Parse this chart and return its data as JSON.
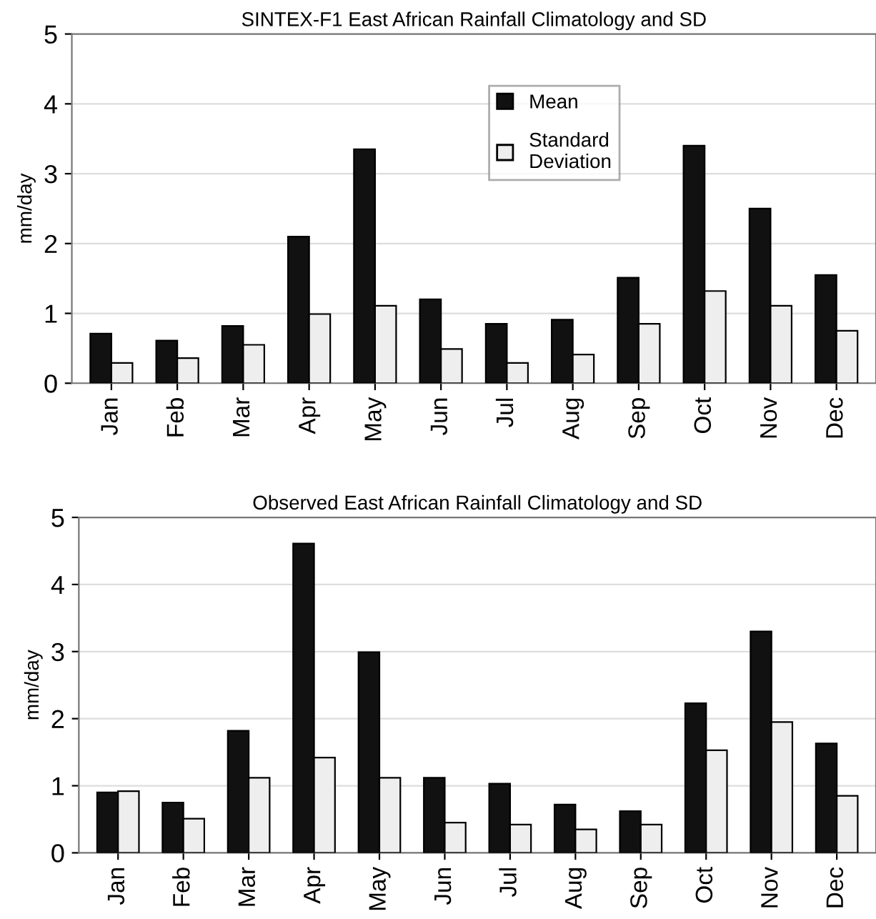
{
  "chart_data": [
    {
      "type": "bar",
      "title": "SINTEX-F1 East African Rainfall Climatology and SD",
      "ylabel": "mm/day",
      "categories": [
        "Jan",
        "Feb",
        "Mar",
        "Apr",
        "May",
        "Jun",
        "Jul",
        "Aug",
        "Sep",
        "Oct",
        "Nov",
        "Dec"
      ],
      "series": [
        {
          "name": "Mean",
          "color": "#111111",
          "values": [
            0.71,
            0.61,
            0.82,
            2.1,
            3.35,
            1.2,
            0.85,
            0.91,
            1.51,
            3.4,
            2.5,
            1.55
          ]
        },
        {
          "name": "Standard\nDeviation",
          "color": "#eeeeee",
          "values": [
            0.29,
            0.36,
            0.55,
            0.99,
            1.11,
            0.49,
            0.29,
            0.41,
            0.85,
            1.32,
            1.11,
            0.75
          ]
        }
      ],
      "ylim": [
        0,
        5
      ],
      "yticks": [
        0,
        1,
        2,
        3,
        4,
        5
      ],
      "grid": "y",
      "legend": "top"
    },
    {
      "type": "bar",
      "title": "Observed East African Rainfall Climatology and SD",
      "ylabel": "mm/day",
      "categories": [
        "Jan",
        "Feb",
        "Mar",
        "Apr",
        "May",
        "Jun",
        "Jul",
        "Aug",
        "Sep",
        "Oct",
        "Nov",
        "Dec"
      ],
      "series": [
        {
          "color": "#111111",
          "values": [
            0.9,
            0.75,
            1.82,
            4.61,
            2.99,
            1.12,
            1.03,
            0.72,
            0.62,
            2.23,
            3.3,
            1.63
          ]
        },
        {
          "color": "#eeeeee",
          "values": [
            0.92,
            0.51,
            1.12,
            1.42,
            1.12,
            0.45,
            0.42,
            0.35,
            0.42,
            1.53,
            1.95,
            0.85
          ]
        }
      ],
      "ylim": [
        0,
        5
      ],
      "yticks": [
        0,
        1,
        2,
        3,
        4,
        5
      ],
      "grid": "y",
      "legend": false
    }
  ]
}
